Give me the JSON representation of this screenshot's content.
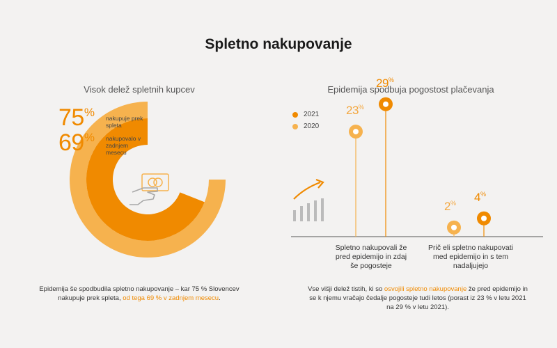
{
  "title": "Spletno nakupovanje",
  "left": {
    "subtitle": "Visok delež spletnih kupcev",
    "stat1": {
      "value": "75",
      "unit": "%",
      "label": "nakupuje prek spleta"
    },
    "stat2": {
      "value": "69",
      "unit": "%",
      "label": "nakupovalo v zadnjem mesecu"
    },
    "caption_part1": "Epidemija še spodbudila spletno nakupovanje – kar 75 % Slovencev nakupuje prek spleta, ",
    "caption_highlight": "od tega 69 % v zadnjem mesecu",
    "caption_part2": "."
  },
  "right": {
    "subtitle": "Epidemija spodbuja pogostost plačevanja",
    "legend": [
      "2021",
      "2020"
    ],
    "cat1_label": "Spletno nakupovali že pred epidemijo in zdaj še pogosteje",
    "cat2_label": "Prič eli spletno nakupovati med epidemijo in s tem nadaljujejo",
    "caption_part1": "Vse višji delež tistih, ki so ",
    "caption_highlight": "osvojili spletno nakupovanje",
    "caption_part2": " že pred epidemijo in se k njemu vračajo čedalje pogosteje tudi letos (porast iz 23 % v letu 2021 na 29 % v letu 2021)."
  },
  "colors": {
    "accent": "#f08a00",
    "light": "#f6b24e",
    "text": "#333333"
  },
  "chart_data": [
    {
      "type": "pie",
      "title": "Visok delež spletnih kupcev",
      "series": [
        {
          "name": "nakupuje prek spleta",
          "value": 75
        },
        {
          "name": "nakupovalo v zadnjem mesecu",
          "value": 69
        }
      ]
    },
    {
      "type": "scatter",
      "title": "Epidemija spodbuja pogostost plačevanja",
      "categories": [
        "Spletno nakupovali že pred epidemijo in zdaj še pogosteje",
        "Pričeli spletno nakupovati med epidemijo in s tem nadaljujejo"
      ],
      "series": [
        {
          "name": "2020",
          "values": [
            23,
            2
          ]
        },
        {
          "name": "2021",
          "values": [
            29,
            4
          ]
        }
      ],
      "ylim": [
        0,
        32
      ],
      "legend": "top-left"
    }
  ]
}
